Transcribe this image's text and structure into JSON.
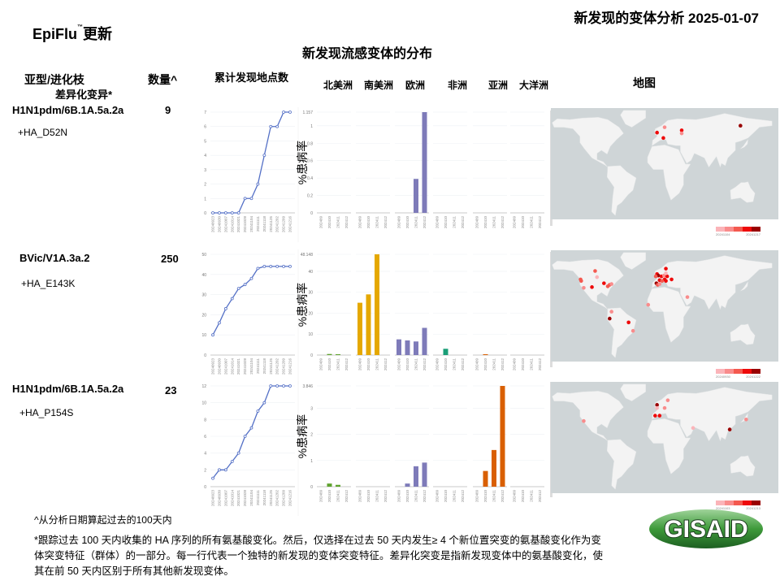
{
  "header": {
    "slide_title": "新发现的变体分析 2025-01-07",
    "brand": "EpiFlu",
    "brand_tm": "™",
    "brand_suffix": "更新",
    "distribution_title": "新发现流感变体的分布"
  },
  "columns": {
    "clade": "亚型/进化枝",
    "differential": "差异化变异*",
    "count": "数量^",
    "cumulative": "累计发现地点数",
    "map": "地图",
    "continents": [
      "北美洲",
      "南美洲",
      "欧洲",
      "非洲",
      "亚洲",
      "大洋洲"
    ],
    "y_axis_label": "%患病率"
  },
  "colors": {
    "line": "#5470c6",
    "continents": [
      "#5fa32e",
      "#e5a800",
      "#7e7bb9",
      "#1a9e77",
      "#d95f02",
      "#7570b3"
    ],
    "map_ocean": "#cfd5d7",
    "map_land": "#f3f3f3",
    "map_scale": [
      "#fbb4b9",
      "#f98c8c",
      "#f4594f",
      "#ee0a0a",
      "#990000"
    ]
  },
  "rows": [
    {
      "clade": "H1N1pdm/6B.1A.5a.2a",
      "count": "9",
      "mutation": "+HA_D52N",
      "map_legend": [
        "20241104",
        "20241217"
      ],
      "map_points": [
        {
          "lon": 10,
          "lat": 60,
          "level": 1
        },
        {
          "lon": -2,
          "lat": 53,
          "level": 3
        },
        {
          "lon": 8,
          "lat": 46,
          "level": 3
        },
        {
          "lon": 37,
          "lat": 56,
          "level": 3
        },
        {
          "lon": 37,
          "lat": 52,
          "level": 1
        },
        {
          "lon": 130,
          "lat": 62,
          "level": 4
        }
      ]
    },
    {
      "clade": "BVic/V1A.3a.2",
      "count": "250",
      "mutation": "+HA_E143K",
      "map_legend": [
        "20240930",
        "20241222"
      ],
      "map_points": [
        {
          "lon": -100,
          "lat": 58,
          "level": 2
        },
        {
          "lon": -97,
          "lat": 50,
          "level": 0
        },
        {
          "lon": -123,
          "lat": 47,
          "level": 2
        },
        {
          "lon": -122,
          "lat": 45,
          "level": 2
        },
        {
          "lon": -118,
          "lat": 36,
          "level": 1
        },
        {
          "lon": -105,
          "lat": 37,
          "level": 3
        },
        {
          "lon": -86,
          "lat": 42,
          "level": 3
        },
        {
          "lon": -77,
          "lat": 40,
          "level": 2
        },
        {
          "lon": -74,
          "lat": 41,
          "level": 1
        },
        {
          "lon": -80,
          "lat": 38,
          "level": 2
        },
        {
          "lon": -2,
          "lat": 54,
          "level": 3
        },
        {
          "lon": 0,
          "lat": 52,
          "level": 4
        },
        {
          "lon": -4,
          "lat": 51,
          "level": 2
        },
        {
          "lon": 5,
          "lat": 51,
          "level": 3
        },
        {
          "lon": 9,
          "lat": 52,
          "level": 1
        },
        {
          "lon": 14,
          "lat": 51,
          "level": 3
        },
        {
          "lon": 10,
          "lat": 47,
          "level": 3
        },
        {
          "lon": 2,
          "lat": 46,
          "level": 3
        },
        {
          "lon": -3,
          "lat": 42,
          "level": 4
        },
        {
          "lon": -1,
          "lat": 40,
          "level": 2
        },
        {
          "lon": 2,
          "lat": 41,
          "level": 1
        },
        {
          "lon": 6,
          "lat": 45,
          "level": 2
        },
        {
          "lon": 12,
          "lat": 45,
          "level": 3
        },
        {
          "lon": 21,
          "lat": 47,
          "level": 3
        },
        {
          "lon": 12,
          "lat": 61,
          "level": 3
        },
        {
          "lon": 12,
          "lat": 55,
          "level": 0
        },
        {
          "lon": 46,
          "lat": 24,
          "level": 1
        },
        {
          "lon": -16,
          "lat": 14,
          "level": 1
        },
        {
          "lon": -74,
          "lat": 5,
          "level": 1
        },
        {
          "lon": -77,
          "lat": -4,
          "level": 4
        },
        {
          "lon": -47,
          "lat": -9,
          "level": 3
        },
        {
          "lon": -40,
          "lat": -20,
          "level": 1
        }
      ]
    },
    {
      "clade": "H1N1pdm/6B.1A.5a.2a",
      "count": "23",
      "mutation": "+HA_P154S",
      "map_legend": [
        "20241103",
        "20241213"
      ],
      "map_points": [
        {
          "lon": -118,
          "lat": 34,
          "level": 1
        },
        {
          "lon": -2,
          "lat": 55,
          "level": 4
        },
        {
          "lon": -2,
          "lat": 51,
          "level": 0
        },
        {
          "lon": 15,
          "lat": 61,
          "level": 1
        },
        {
          "lon": 10,
          "lat": 51,
          "level": 1
        },
        {
          "lon": -5,
          "lat": 41,
          "level": 3
        },
        {
          "lon": 2,
          "lat": 41,
          "level": 3
        },
        {
          "lon": 55,
          "lat": 25,
          "level": 0
        },
        {
          "lon": 113,
          "lat": 23,
          "level": 4
        },
        {
          "lon": 139,
          "lat": 36,
          "level": 1
        }
      ]
    }
  ],
  "chart_data": [
    {
      "type": "line",
      "x": [
        "20240923",
        "20240930",
        "20241007",
        "20241014",
        "20241021",
        "20241028",
        "20241104",
        "20241111",
        "20241118",
        "20241125",
        "20241202",
        "20241209",
        "20241216"
      ],
      "values": [
        0,
        0,
        0,
        0,
        0,
        1,
        1,
        2,
        4,
        6,
        6,
        7,
        7
      ],
      "ylim": [
        0,
        7
      ],
      "yticks": [
        0,
        1,
        2,
        3,
        4,
        5,
        6,
        7
      ],
      "grid": true
    },
    {
      "type": "bar",
      "categories": [
        "202409",
        "202410",
        "202411",
        "202412"
      ],
      "groups": [
        "北美洲",
        "南美洲",
        "欧洲",
        "非洲",
        "亚洲",
        "大洋洲"
      ],
      "ylabel": "%患病率",
      "series": [
        [
          0,
          0,
          0,
          0
        ],
        [
          0,
          0,
          0,
          0
        ],
        [
          0,
          0,
          0.39,
          1.157
        ],
        [
          0,
          0,
          0,
          0
        ],
        [
          0,
          0,
          0,
          0
        ],
        [
          0,
          0,
          0,
          0
        ]
      ],
      "ylim": [
        0,
        1.157
      ],
      "yticks": [
        "0",
        "0.2",
        "0.4",
        "0.6",
        "0.8",
        "1",
        "1.157"
      ],
      "grid": true
    },
    {
      "type": "line",
      "x": [
        "20240923",
        "20240930",
        "20241007",
        "20241014",
        "20241021",
        "20241028",
        "20241104",
        "20241111",
        "20241118",
        "20241125",
        "20241202",
        "20241209",
        "20241216"
      ],
      "values": [
        10,
        16,
        23,
        28,
        33,
        35,
        38,
        43,
        44,
        44,
        44,
        44,
        44
      ],
      "ylim": [
        0,
        50
      ],
      "yticks": [
        0,
        10,
        20,
        30,
        40,
        50
      ],
      "grid": true
    },
    {
      "type": "bar",
      "categories": [
        "202409",
        "202410",
        "202411",
        "202412"
      ],
      "groups": [
        "北美洲",
        "南美洲",
        "欧洲",
        "非洲",
        "亚洲",
        "大洋洲"
      ],
      "ylabel": "%患病率",
      "series": [
        [
          0,
          0.5,
          0.4,
          0
        ],
        [
          25,
          29,
          48.148,
          0
        ],
        [
          7.5,
          7,
          6.5,
          13
        ],
        [
          0,
          3,
          0,
          0
        ],
        [
          0,
          0.3,
          0,
          0
        ],
        [
          0,
          0,
          0,
          0
        ]
      ],
      "ylim": [
        0,
        48.148
      ],
      "yticks": [
        "0",
        "10",
        "20",
        "30",
        "40",
        "48.148"
      ],
      "grid": true
    },
    {
      "type": "line",
      "x": [
        "20240923",
        "20240930",
        "20241007",
        "20241014",
        "20241021",
        "20241028",
        "20241104",
        "20241111",
        "20241118",
        "20241125",
        "20241202",
        "20241209",
        "20241216"
      ],
      "values": [
        1,
        2,
        2,
        3,
        4,
        6,
        7,
        9,
        10,
        12,
        12,
        12,
        12
      ],
      "ylim": [
        0,
        12
      ],
      "yticks": [
        0,
        2,
        4,
        6,
        8,
        10,
        12
      ],
      "grid": true
    },
    {
      "type": "bar",
      "categories": [
        "202409",
        "202410",
        "202411",
        "202412"
      ],
      "groups": [
        "北美洲",
        "南美洲",
        "欧洲",
        "非洲",
        "亚洲",
        "大洋洲"
      ],
      "ylabel": "%患病率",
      "series": [
        [
          0,
          0.12,
          0.07,
          0
        ],
        [
          0,
          0,
          0,
          0
        ],
        [
          0,
          0.12,
          0.78,
          0.92
        ],
        [
          0,
          0,
          0,
          0
        ],
        [
          0,
          0.6,
          1.4,
          3.846
        ],
        [
          0,
          0,
          0,
          0
        ]
      ],
      "ylim": [
        0,
        3.846
      ],
      "yticks": [
        "0",
        "1",
        "2",
        "3",
        "3.846"
      ],
      "grid": true
    }
  ],
  "footer": {
    "note1": "^从分析日期算起过去的100天内",
    "note2": "*跟踪过去 100 天内收集的 HA 序列的所有氨基酸变化。然后，仅选择在过去 50 天内发生≥ 4 个新位置突变的氨基酸变化作为变体突变特征（群体）的一部分。每一行代表一个独特的新发现的变体突变特征。差异化突变是指新发现变体中的氨基酸变化，使其在前 50 天内区别于所有其他新发现变体。"
  },
  "logo": {
    "text": "GISAID"
  }
}
